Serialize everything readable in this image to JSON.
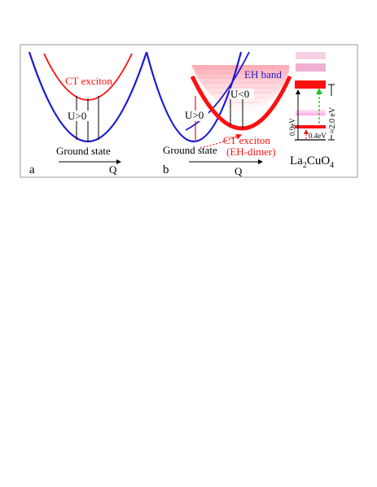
{
  "panel_a": {
    "label": "a",
    "ct_exciton": "CT exciton",
    "u_label": "U>0",
    "ground_state": "Ground state",
    "axis_label": "Q"
  },
  "panel_b": {
    "label": "b",
    "eh_band": "EH band",
    "u_pos_label": "U>0",
    "u_neg_label": "U<0",
    "ground_state": "Ground state",
    "ct_exciton": "CT exciton",
    "eh_dimer": "(EH-dimer)",
    "axis_label": "Q"
  },
  "levels": {
    "material_main": "La",
    "material_sub1": "2",
    "material_mid": "CuO",
    "material_sub2": "4",
    "gap_09": "0.9eV",
    "gap_04": "0.4eV",
    "gap_20": "≈2.0 eV"
  },
  "colors": {
    "blue": "#1a1ad0",
    "red": "#ff1010",
    "pink_light": "#f6c9dd",
    "magenta_band": "#e060c0",
    "green": "#20c020"
  }
}
